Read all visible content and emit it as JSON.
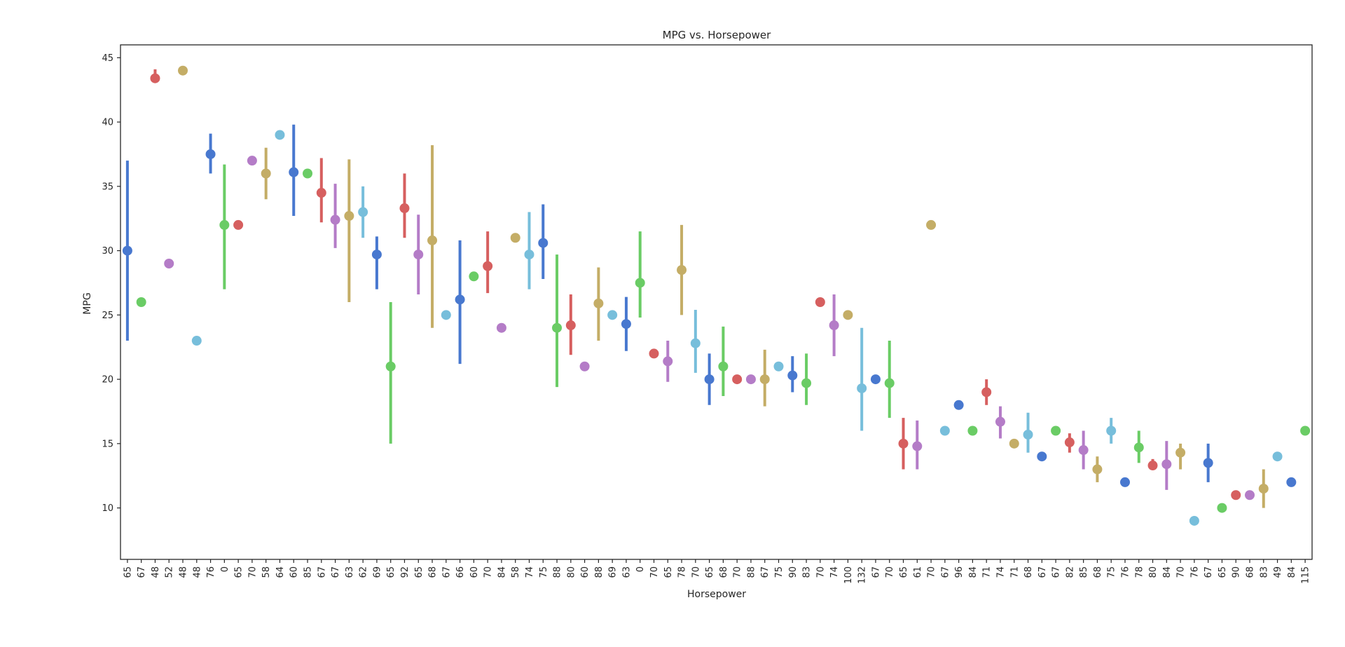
{
  "chart_data": {
    "type": "scatter",
    "title": "MPG vs. Horsepower",
    "xlabel": "Horsepower",
    "ylabel": "MPG",
    "ylim": [
      6,
      46
    ],
    "yticks": [
      10,
      15,
      20,
      25,
      30,
      35,
      40,
      45
    ],
    "grid": false,
    "palette": [
      "#4878cf",
      "#6acc65",
      "#d65f5f",
      "#b47cc7",
      "#c4ad66",
      "#77bedb"
    ],
    "categories": [
      "65",
      "67",
      "48",
      "52",
      "48",
      "48",
      "76",
      "0",
      "65",
      "70",
      "58",
      "64",
      "60",
      "85",
      "67",
      "67",
      "63",
      "62",
      "69",
      "65",
      "92",
      "65",
      "68",
      "67",
      "66",
      "60",
      "70",
      "84",
      "58",
      "74",
      "75",
      "88",
      "80",
      "60",
      "88",
      "69",
      "63",
      "0",
      "70",
      "65",
      "78",
      "70",
      "65",
      "68",
      "70",
      "88",
      "67",
      "75",
      "90",
      "83",
      "70",
      "74",
      "100",
      "132",
      "67",
      "70",
      "65",
      "61",
      "70",
      "67",
      "96",
      "84",
      "71",
      "74",
      "71",
      "68",
      "67",
      "67",
      "82",
      "85",
      "68",
      "75",
      "76",
      "78",
      "80",
      "84",
      "70",
      "76",
      "67",
      "65",
      "90",
      "68",
      "83",
      "49",
      "84",
      "115"
    ],
    "points": [
      {
        "y": 30,
        "lo": 23,
        "hi": 37
      },
      {
        "y": 26
      },
      {
        "y": 43.4,
        "lo": 43.1,
        "hi": 44.1
      },
      {
        "y": 29
      },
      {
        "y": 44
      },
      {
        "y": 23
      },
      {
        "y": 37.5,
        "lo": 36,
        "hi": 39.1
      },
      {
        "y": 32,
        "lo": 27,
        "hi": 36.7
      },
      {
        "y": 32
      },
      {
        "y": 37
      },
      {
        "y": 36,
        "lo": 34,
        "hi": 38
      },
      {
        "y": 39
      },
      {
        "y": 36.1,
        "lo": 32.7,
        "hi": 39.8
      },
      {
        "y": 36
      },
      {
        "y": 34.5,
        "lo": 32.2,
        "hi": 37.2
      },
      {
        "y": 32.4,
        "lo": 30.2,
        "hi": 35.2
      },
      {
        "y": 32.7,
        "lo": 26,
        "hi": 37.1
      },
      {
        "y": 33,
        "lo": 31,
        "hi": 35
      },
      {
        "y": 29.7,
        "lo": 27,
        "hi": 31.1
      },
      {
        "y": 21,
        "lo": 15,
        "hi": 26
      },
      {
        "y": 33.3,
        "lo": 31,
        "hi": 36
      },
      {
        "y": 29.7,
        "lo": 26.6,
        "hi": 32.8
      },
      {
        "y": 30.8,
        "lo": 24,
        "hi": 38.2
      },
      {
        "y": 25
      },
      {
        "y": 26.2,
        "lo": 21.2,
        "hi": 30.8
      },
      {
        "y": 28
      },
      {
        "y": 28.8,
        "lo": 26.7,
        "hi": 31.5
      },
      {
        "y": 24
      },
      {
        "y": 31
      },
      {
        "y": 29.7,
        "lo": 27,
        "hi": 33
      },
      {
        "y": 30.6,
        "lo": 27.8,
        "hi": 33.6
      },
      {
        "y": 24,
        "lo": 19.4,
        "hi": 29.7
      },
      {
        "y": 24.2,
        "lo": 21.9,
        "hi": 26.6
      },
      {
        "y": 21
      },
      {
        "y": 25.9,
        "lo": 23,
        "hi": 28.7
      },
      {
        "y": 25
      },
      {
        "y": 24.3,
        "lo": 22.2,
        "hi": 26.4
      },
      {
        "y": 27.5,
        "lo": 24.8,
        "hi": 31.5
      },
      {
        "y": 22
      },
      {
        "y": 21.4,
        "lo": 19.8,
        "hi": 23
      },
      {
        "y": 28.5,
        "lo": 25,
        "hi": 32
      },
      {
        "y": 22.8,
        "lo": 20.5,
        "hi": 25.4
      },
      {
        "y": 20,
        "lo": 18,
        "hi": 22
      },
      {
        "y": 21,
        "lo": 18.7,
        "hi": 24.1
      },
      {
        "y": 20
      },
      {
        "y": 20
      },
      {
        "y": 20,
        "lo": 17.9,
        "hi": 22.3
      },
      {
        "y": 21
      },
      {
        "y": 20.3,
        "lo": 19,
        "hi": 21.8
      },
      {
        "y": 19.7,
        "lo": 18,
        "hi": 22
      },
      {
        "y": 26
      },
      {
        "y": 24.2,
        "lo": 21.8,
        "hi": 26.6
      },
      {
        "y": 25
      },
      {
        "y": 19.3,
        "lo": 16,
        "hi": 24
      },
      {
        "y": 20
      },
      {
        "y": 19.7,
        "lo": 17,
        "hi": 23
      },
      {
        "y": 15,
        "lo": 13,
        "hi": 17
      },
      {
        "y": 14.8,
        "lo": 13,
        "hi": 16.8
      },
      {
        "y": 32
      },
      {
        "y": 16
      },
      {
        "y": 18
      },
      {
        "y": 16
      },
      {
        "y": 19,
        "lo": 18,
        "hi": 20
      },
      {
        "y": 16.7,
        "lo": 15.4,
        "hi": 17.9
      },
      {
        "y": 15
      },
      {
        "y": 15.7,
        "lo": 14.3,
        "hi": 17.4
      },
      {
        "y": 14
      },
      {
        "y": 16
      },
      {
        "y": 15.1,
        "lo": 14.3,
        "hi": 15.8
      },
      {
        "y": 14.5,
        "lo": 13,
        "hi": 16
      },
      {
        "y": 13,
        "lo": 12,
        "hi": 14
      },
      {
        "y": 16,
        "lo": 15,
        "hi": 17
      },
      {
        "y": 12
      },
      {
        "y": 14.7,
        "lo": 13.5,
        "hi": 16
      },
      {
        "y": 13.3,
        "lo": 13,
        "hi": 13.8
      },
      {
        "y": 13.4,
        "lo": 11.4,
        "hi": 15.2
      },
      {
        "y": 14.3,
        "lo": 13,
        "hi": 15
      },
      {
        "y": 9
      },
      {
        "y": 13.5,
        "lo": 12,
        "hi": 15
      },
      {
        "y": 10
      },
      {
        "y": 11
      },
      {
        "y": 11
      },
      {
        "y": 11.5,
        "lo": 10,
        "hi": 13
      },
      {
        "y": 14
      },
      {
        "y": 12
      },
      {
        "y": 16
      }
    ]
  }
}
